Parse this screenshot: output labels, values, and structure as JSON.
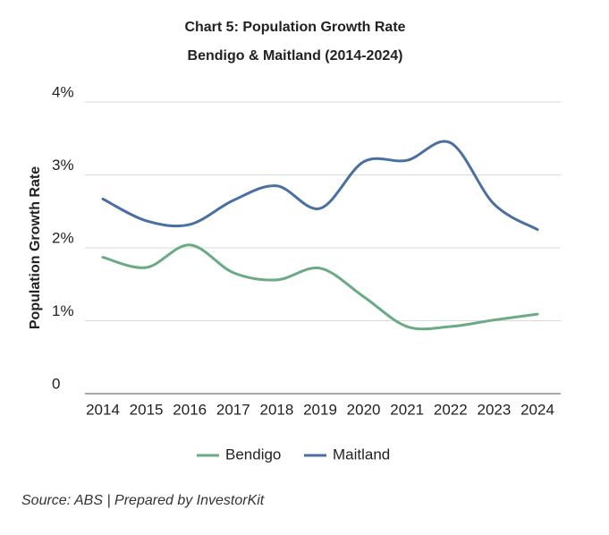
{
  "chart_data": {
    "type": "line",
    "title": "Chart 5: Population Growth Rate",
    "subtitle": "Bendigo & Maitland (2014-2024)",
    "y_label": "Population Growth Rate",
    "categories": [
      "2014",
      "2015",
      "2016",
      "2017",
      "2018",
      "2019",
      "2020",
      "2021",
      "2022",
      "2023",
      "2024"
    ],
    "series": [
      {
        "name": "Bendigo",
        "color": "#6aaa84",
        "values": [
          1.87,
          1.73,
          2.04,
          1.66,
          1.56,
          1.72,
          1.33,
          0.92,
          0.92,
          1.01,
          1.09
        ]
      },
      {
        "name": "Maitland",
        "color": "#4a6fa0",
        "values": [
          2.67,
          2.37,
          2.32,
          2.65,
          2.85,
          2.54,
          3.18,
          3.2,
          3.44,
          2.6,
          2.25
        ]
      }
    ],
    "ylim": [
      0,
      4
    ],
    "yticks": [
      0,
      {
        "value": 1,
        "label": "1%"
      },
      {
        "value": 2,
        "label": "2%"
      },
      {
        "value": 3,
        "label": "3%"
      },
      {
        "value": 4,
        "label": "4%"
      }
    ],
    "grid": true,
    "legend": "bottom",
    "source": "Source: ABS | Prepared by InvestorKit"
  }
}
